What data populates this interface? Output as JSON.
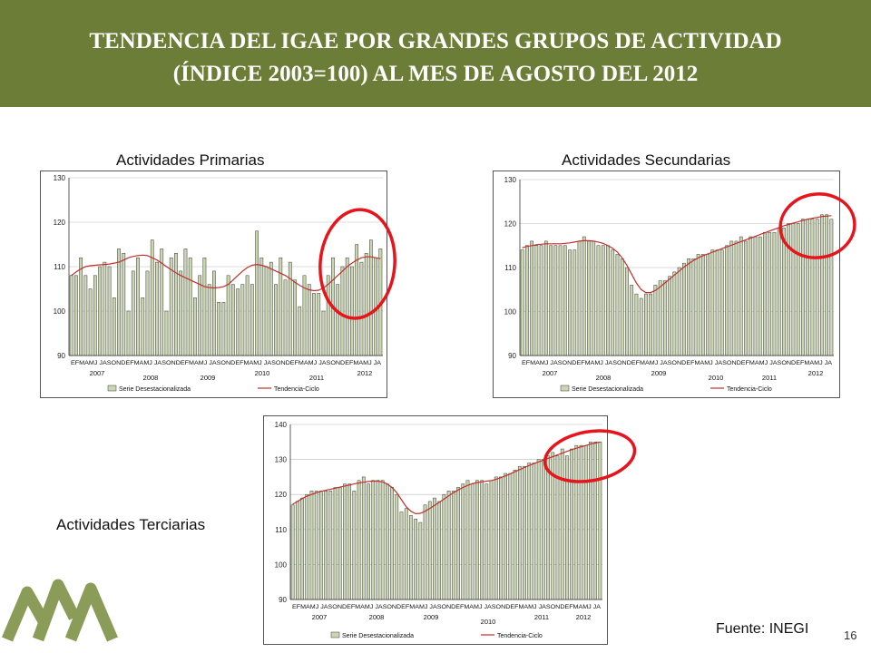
{
  "header": {
    "title_line1": "TENDENCIA DEL IGAE POR GRANDES GRUPOS DE ACTIVIDAD",
    "title_line2": "(ÍNDICE 2003=100) AL MES DE AGOSTO DEL 2012",
    "banner_color": "#6b7d36"
  },
  "footer": {
    "source": "Fuente: INEGI",
    "page_number": "16",
    "logo": "triangular-mountains-logo"
  },
  "colors": {
    "bar": "#c9d6b0",
    "bar_border": "#3a3a3a",
    "trend": "#c0302a",
    "highlight": "#e8141b",
    "grid": "#bbbbbb"
  },
  "chart_data": [
    {
      "type": "bar",
      "title": "Actividades Primarias",
      "ylim": [
        90,
        130
      ],
      "yticks": [
        "130",
        "120",
        "110",
        "100",
        "90"
      ],
      "month_labels": "EFMAMJ JASONDEFMAMJ JASONDEFMAMJ JASONDEFMAMJ JASONDEFMAMJ JASONDEFMAMJ JA",
      "year_labels": [
        "2007",
        "2008",
        "2009",
        "2010",
        "2011",
        "2012"
      ],
      "legend": [
        "Serie Desestacionalizada",
        "Tendencia-Ciclo"
      ],
      "highlighted": "last 8 months",
      "series": [
        {
          "name": "Serie Desestacionalizada",
          "values": [
            108,
            108,
            112,
            108,
            105,
            108,
            110,
            111,
            110,
            103,
            114,
            113,
            100,
            109,
            112,
            103,
            109,
            116,
            111,
            114,
            100,
            112,
            113,
            109,
            114,
            112,
            103,
            108,
            112,
            106,
            109,
            102,
            102,
            108,
            106,
            105,
            106,
            108,
            106,
            118,
            112,
            110,
            111,
            106,
            112,
            107,
            111,
            107,
            101,
            108,
            106,
            104,
            104,
            100,
            108,
            112,
            106,
            110,
            112,
            110,
            115,
            111,
            113,
            116,
            112,
            114
          ]
        },
        {
          "name": "Tendencia-Ciclo",
          "values": [
            108,
            108.8,
            109.5,
            110,
            110.2,
            110.3,
            110.4,
            110.5,
            110.6,
            110.8,
            111,
            111.5,
            112,
            112.3,
            112.5,
            112.6,
            112.5,
            112,
            111.5,
            110.8,
            110,
            109.3,
            108.6,
            108,
            107.5,
            107,
            106.5,
            106,
            105.5,
            105.3,
            105.2,
            105.3,
            105.5,
            106,
            107,
            108,
            109,
            109.8,
            110.3,
            110.5,
            110.3,
            110,
            109.5,
            109,
            108.5,
            108,
            107.3,
            106.5,
            105.8,
            105.2,
            104.8,
            104.6,
            104.7,
            105.2,
            106,
            107,
            108,
            109,
            110,
            110.8,
            111.5,
            112,
            112.2,
            112.2,
            112,
            111.8
          ]
        }
      ]
    },
    {
      "type": "bar",
      "title": "Actividades Secundarias",
      "ylim": [
        90,
        130
      ],
      "yticks": [
        "130",
        "120",
        "110",
        "100",
        "90"
      ],
      "month_labels": "EFMAMJ JASONDEFMAMJ JASONDEFMAMJ JASONDEFMAMJ JASONDEFMAMJ JASONDEFMAMJ JA",
      "year_labels": [
        "2007",
        "2008",
        "2009",
        "2010",
        "2011",
        "2012"
      ],
      "legend": [
        "Serie Desestacionalizada",
        "Tendencia-Ciclo"
      ],
      "highlighted": "last 8 months",
      "series": [
        {
          "name": "Serie Desestacionalizada",
          "values": [
            114,
            115,
            116,
            115,
            115,
            116,
            115,
            115,
            115,
            115,
            114,
            114,
            116,
            117,
            116,
            116,
            115,
            115,
            115,
            114,
            113,
            112,
            110,
            106,
            104,
            103,
            104,
            104,
            106,
            107,
            107,
            108,
            109,
            110,
            111,
            112,
            112,
            113,
            113,
            113,
            114,
            114,
            114,
            115,
            116,
            116,
            117,
            116,
            117,
            117,
            117,
            118,
            118,
            118,
            119,
            119,
            120,
            120,
            120,
            121,
            121,
            121,
            121,
            122,
            122,
            121
          ]
        },
        {
          "name": "Tendencia-Ciclo",
          "values": [
            114.5,
            114.8,
            115,
            115.2,
            115.3,
            115.4,
            115.4,
            115.4,
            115.4,
            115.5,
            115.6,
            115.8,
            116,
            116.1,
            116.1,
            116,
            115.8,
            115.5,
            115,
            114.4,
            113.5,
            112.2,
            110.5,
            108.5,
            106.5,
            105,
            104.3,
            104.3,
            104.8,
            105.6,
            106.5,
            107.4,
            108.3,
            109.2,
            110.1,
            110.9,
            111.6,
            112.2,
            112.7,
            113.1,
            113.5,
            113.9,
            114.3,
            114.7,
            115.1,
            115.5,
            115.9,
            116.3,
            116.7,
            117.1,
            117.5,
            117.9,
            118.3,
            118.7,
            119.1,
            119.5,
            119.8,
            120.1,
            120.4,
            120.7,
            121,
            121.2,
            121.4,
            121.6,
            121.7,
            121.8
          ]
        }
      ]
    },
    {
      "type": "bar",
      "title": "Actividades Terciarias",
      "ylim": [
        90,
        140
      ],
      "yticks": [
        "140",
        "130",
        "120",
        "110",
        "100",
        "90"
      ],
      "month_labels": "EFMAMJ JASONDEFMAMJ JASONDEFMAMJ JASONDEFMAMJ JASONDEFMAMJ JASONDEFMAMJ JA",
      "year_labels": [
        "2007",
        "2008",
        "2009",
        "2010",
        "2011",
        "2012"
      ],
      "legend": [
        "Serie Desestacionalizada",
        "Tendencia-Ciclo"
      ],
      "highlighted": "last 10 months",
      "series": [
        {
          "name": "Serie Desestacionalizada",
          "values": [
            117,
            118,
            119,
            120,
            121,
            121,
            121,
            121,
            121,
            122,
            122,
            123,
            123,
            121,
            124,
            125,
            123,
            124,
            124,
            124,
            123,
            122,
            120,
            115,
            116,
            114,
            113,
            112,
            117,
            118,
            119,
            118,
            120,
            121,
            121,
            122,
            123,
            124,
            123,
            124,
            124,
            123,
            124,
            125,
            125,
            126,
            126,
            127,
            128,
            128,
            129,
            129,
            130,
            130,
            131,
            132,
            131,
            133,
            131,
            133,
            134,
            134,
            134,
            135,
            135,
            135
          ]
        },
        {
          "name": "Tendencia-Ciclo",
          "values": [
            117.2,
            118,
            118.8,
            119.5,
            120,
            120.5,
            120.9,
            121.2,
            121.5,
            121.8,
            122.1,
            122.4,
            122.7,
            123,
            123.3,
            123.5,
            123.7,
            123.8,
            123.8,
            123.6,
            123,
            122,
            120.5,
            118.5,
            116.5,
            115.2,
            114.5,
            114.6,
            115.2,
            116,
            116.9,
            117.8,
            118.7,
            119.6,
            120.5,
            121.3,
            122,
            122.6,
            123.1,
            123.4,
            123.6,
            123.8,
            124,
            124.3,
            124.8,
            125.3,
            125.9,
            126.5,
            127.1,
            127.7,
            128.3,
            128.8,
            129.3,
            129.8,
            130.3,
            130.8,
            131.3,
            131.8,
            132.3,
            132.8,
            133.2,
            133.6,
            134,
            134.4,
            134.7,
            135
          ]
        }
      ]
    }
  ]
}
